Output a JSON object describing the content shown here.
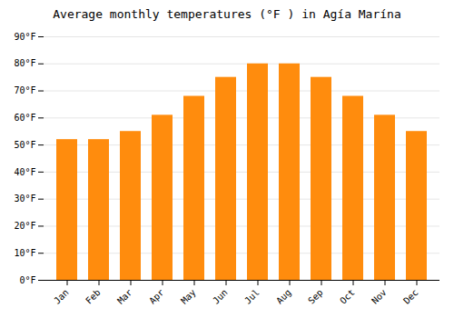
{
  "chart_data": {
    "type": "bar",
    "title": "Average monthly temperatures (°F ) in Agía Marína",
    "categories": [
      "Jan",
      "Feb",
      "Mar",
      "Apr",
      "May",
      "Jun",
      "Jul",
      "Aug",
      "Sep",
      "Oct",
      "Nov",
      "Dec"
    ],
    "values": [
      52,
      52,
      55,
      61,
      68,
      75,
      80,
      80,
      75,
      68,
      61,
      55
    ],
    "color": "#FF8C0D",
    "ylim": [
      0,
      90
    ],
    "yticks": [
      {
        "value": 0,
        "label": "0°F"
      },
      {
        "value": 10,
        "label": "10°F"
      },
      {
        "value": 20,
        "label": "20°F"
      },
      {
        "value": 30,
        "label": "30°F"
      },
      {
        "value": 40,
        "label": "40°F"
      },
      {
        "value": 50,
        "label": "50°F"
      },
      {
        "value": 60,
        "label": "60°F"
      },
      {
        "value": 70,
        "label": "70°F"
      },
      {
        "value": 80,
        "label": "80°F"
      },
      {
        "value": 90,
        "label": "90°F"
      }
    ],
    "grid": true
  }
}
